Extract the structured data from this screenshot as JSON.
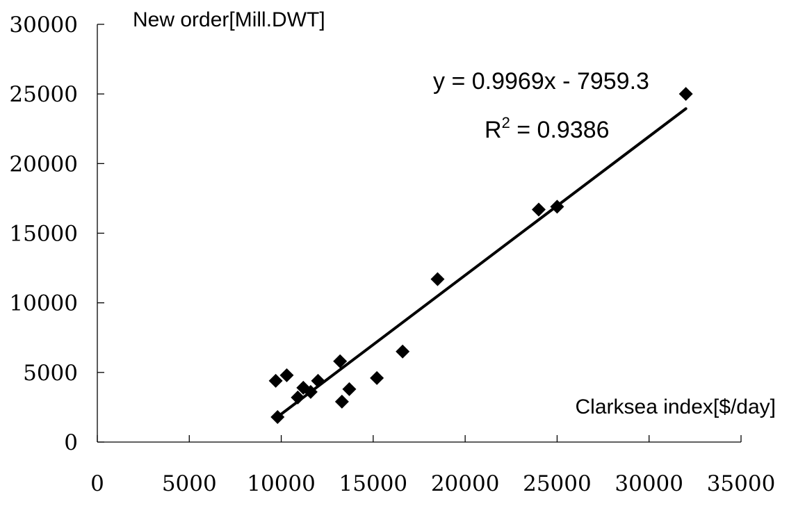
{
  "chart_data": {
    "type": "scatter",
    "xlabel": "Clarksea index[$/day]",
    "ylabel": "New order[Mill.DWT]",
    "xlim": [
      0,
      35000
    ],
    "ylim": [
      0,
      30000
    ],
    "xticks": [
      0,
      5000,
      10000,
      15000,
      20000,
      25000,
      30000,
      35000
    ],
    "yticks": [
      0,
      5000,
      10000,
      15000,
      20000,
      25000,
      30000
    ],
    "grid": false,
    "legend": "none",
    "series": [
      {
        "marker": "diamond",
        "color": "#000000",
        "points": [
          {
            "x": 9700,
            "y": 4400
          },
          {
            "x": 10300,
            "y": 4800
          },
          {
            "x": 9800,
            "y": 1800
          },
          {
            "x": 10900,
            "y": 3200
          },
          {
            "x": 11200,
            "y": 3900
          },
          {
            "x": 11600,
            "y": 3600
          },
          {
            "x": 12000,
            "y": 4400
          },
          {
            "x": 13200,
            "y": 5800
          },
          {
            "x": 13300,
            "y": 2900
          },
          {
            "x": 13700,
            "y": 3800
          },
          {
            "x": 15200,
            "y": 4600
          },
          {
            "x": 16600,
            "y": 6500
          },
          {
            "x": 18500,
            "y": 11700
          },
          {
            "x": 24000,
            "y": 16700
          },
          {
            "x": 25000,
            "y": 16900
          },
          {
            "x": 32000,
            "y": 25000
          }
        ]
      }
    ],
    "trendline": {
      "type": "linear",
      "slope": 0.9969,
      "intercept": -7959.3,
      "x_range": [
        9800,
        32000
      ],
      "equation_label": "y = 0.9969x - 7959.3",
      "r2_label_prefix": "R",
      "r2_label_sup": "2",
      "r2_label_value": " = 0.9386"
    }
  }
}
